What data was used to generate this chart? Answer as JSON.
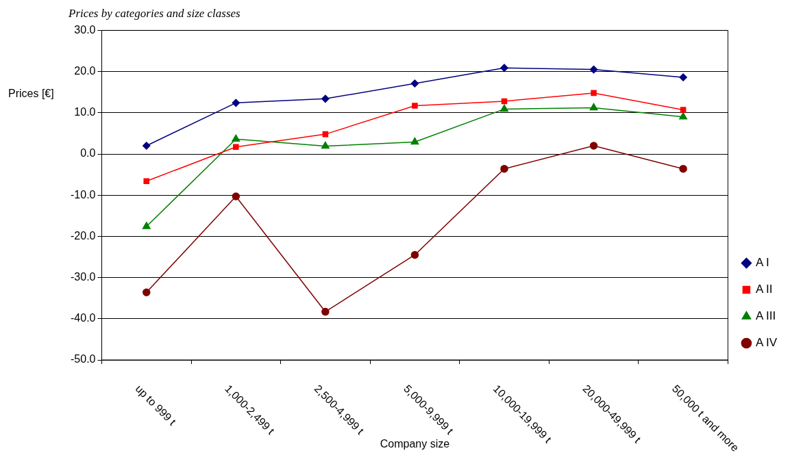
{
  "chart_data": {
    "type": "line",
    "title": "Prices by categories and size classes",
    "xlabel": "Company size",
    "ylabel": "Prices [€]",
    "categories": [
      "up to 999 t",
      "1,000-2,499 t",
      "2,500-4,999 t",
      "5,000-9,999 t",
      "10,000-19,999 t",
      "20,000-49,999 t",
      "50,000 t and more"
    ],
    "series": [
      {
        "name": "A I",
        "color": "#000080",
        "marker": "diamond",
        "values": [
          2.0,
          12.4,
          13.4,
          17.1,
          20.9,
          20.5,
          18.6
        ]
      },
      {
        "name": "A II",
        "color": "#ff0000",
        "marker": "square",
        "values": [
          -6.6,
          1.7,
          4.8,
          11.7,
          12.8,
          14.8,
          10.7
        ]
      },
      {
        "name": "A III",
        "color": "#008000",
        "marker": "triangle",
        "values": [
          -17.6,
          3.6,
          1.9,
          2.9,
          10.9,
          11.2,
          9.0
        ]
      },
      {
        "name": "A IV",
        "color": "#800000",
        "marker": "circle",
        "values": [
          -33.6,
          -10.3,
          -38.3,
          -24.5,
          -3.6,
          2.0,
          -3.6
        ]
      }
    ],
    "ylim": [
      -50,
      30
    ],
    "yticks": [
      {
        "value": -50,
        "label": "-50.0"
      },
      {
        "value": -40,
        "label": "-40.0"
      },
      {
        "value": -30,
        "label": "-30.0"
      },
      {
        "value": -20,
        "label": "-20.0"
      },
      {
        "value": -10,
        "label": "-10.0"
      },
      {
        "value": 0,
        "label": "0.0"
      },
      {
        "value": 10,
        "label": "10.0"
      },
      {
        "value": 20,
        "label": "20.0"
      },
      {
        "value": 30,
        "label": "30.0"
      }
    ],
    "grid": "y",
    "legend": "right",
    "line_style": "solid"
  }
}
